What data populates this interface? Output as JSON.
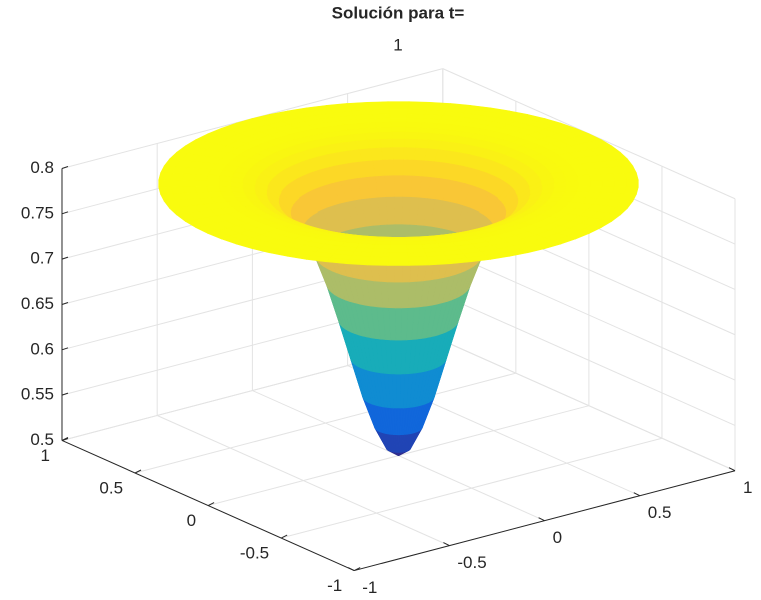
{
  "chart_data": {
    "type": "surface",
    "title": "Solución para t=",
    "subtitle": "1",
    "radius": [
      0,
      0.05,
      0.1,
      0.15,
      0.2,
      0.25,
      0.3,
      0.35,
      0.4,
      0.45,
      0.5,
      0.55,
      0.6,
      0.65,
      0.7,
      0.75,
      0.8,
      0.85,
      0.9,
      0.95,
      1
    ],
    "z": [
      0.5,
      0.508,
      0.532,
      0.566,
      0.608,
      0.65,
      0.69,
      0.723,
      0.749,
      0.768,
      0.781,
      0.79,
      0.795,
      0.798,
      0.799,
      0.8,
      0.8,
      0.8,
      0.8,
      0.8,
      0.8
    ],
    "colormap": "parula",
    "xlim": [
      -1,
      1
    ],
    "xticks": [
      -1,
      -0.5,
      0,
      0.5,
      1
    ],
    "ylim": [
      -1,
      1
    ],
    "yticks": [
      -1,
      -0.5,
      0,
      0.5,
      1
    ],
    "zlim": [
      0.5,
      0.8
    ],
    "zticks": [
      0.5,
      0.55,
      0.6,
      0.65,
      0.7,
      0.75,
      0.8
    ],
    "grid": true
  }
}
